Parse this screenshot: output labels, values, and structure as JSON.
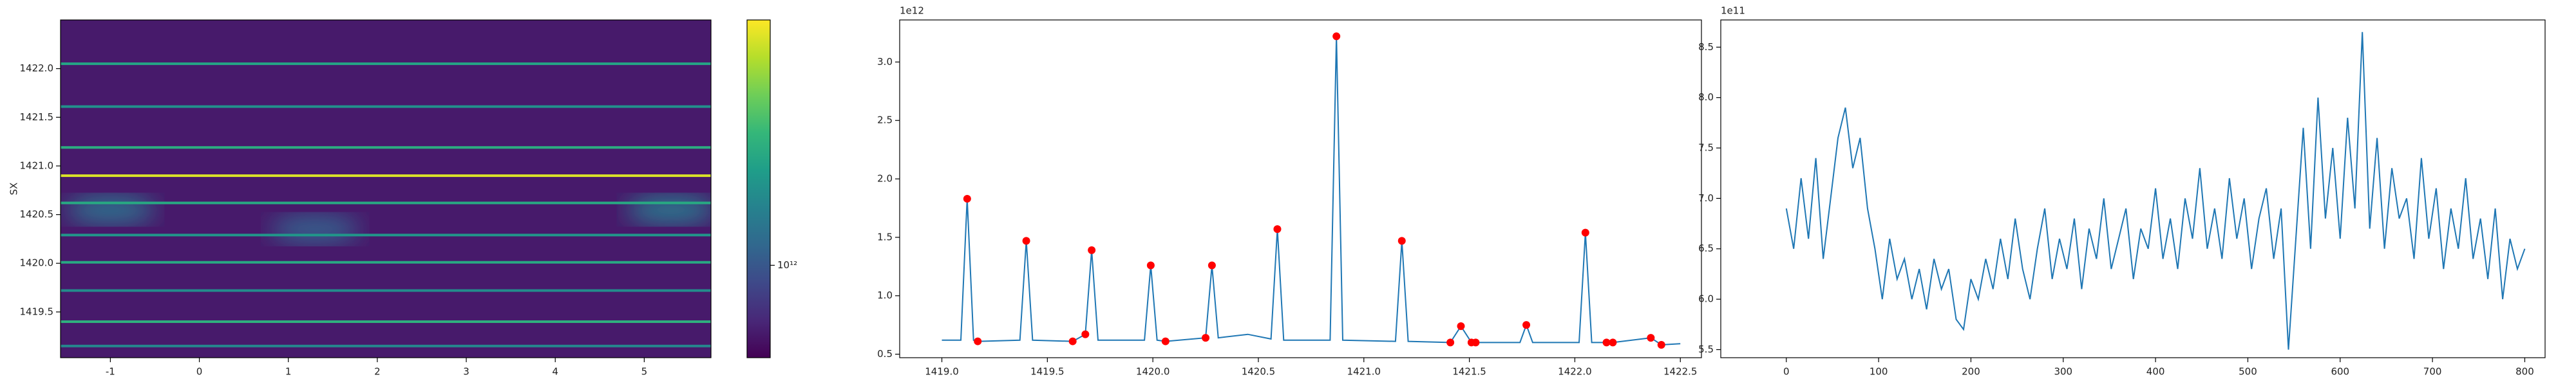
{
  "chart_data": [
    {
      "type": "heatmap",
      "ylabel": "SX",
      "xlim": [
        -1.56,
        5.75
      ],
      "ylim": [
        1419.03,
        1422.5
      ],
      "xticks": [
        -1,
        0,
        1,
        2,
        3,
        4,
        5
      ],
      "yticks": [
        1419.5,
        {
          "value": 1420,
          "label": "1420.0"
        },
        1420.5,
        {
          "value": 1421,
          "label": "1421.0"
        },
        1421.5,
        {
          "value": 1422,
          "label": "1422.0"
        }
      ],
      "background": 600000000000,
      "rows": [
        {
          "y": 1422.05,
          "value": 2200000000000
        },
        {
          "y": 1421.61,
          "value": 1800000000000
        },
        {
          "y": 1421.19,
          "value": 2400000000000
        },
        {
          "y": 1420.9,
          "value": 5500000000000
        },
        {
          "y": 1420.62,
          "value": 2300000000000
        },
        {
          "y": 1420.29,
          "value": 1900000000000
        },
        {
          "y": 1420.01,
          "value": 2300000000000
        },
        {
          "y": 1419.72,
          "value": 1700000000000
        },
        {
          "y": 1419.4,
          "value": 2500000000000
        },
        {
          "y": 1419.15,
          "value": 1600000000000
        }
      ],
      "blobs": [
        {
          "x": -1.0,
          "y": 1420.55,
          "value": 1300000000000
        },
        {
          "x": 1.3,
          "y": 1420.35,
          "value": 1100000000000
        },
        {
          "x": 5.3,
          "y": 1420.55,
          "value": 1400000000000
        }
      ],
      "colorbar": {
        "scale": "log",
        "colormap": "viridis",
        "clim": [
          500000000000,
          6300000000000
        ],
        "ticks": [
          {
            "value": 1000000000000,
            "label": "10¹²"
          }
        ]
      }
    },
    {
      "type": "line",
      "offset_label": "1e12",
      "xlim": [
        1418.8,
        1422.6
      ],
      "ylim": [
        0.47,
        3.36
      ],
      "xticks": [
        {
          "value": 1419,
          "label": "1419.0"
        },
        1419.5,
        {
          "value": 1420,
          "label": "1420.0"
        },
        1420.5,
        {
          "value": 1421,
          "label": "1421.0"
        },
        1421.5,
        {
          "value": 1422,
          "label": "1422.0"
        },
        1422.5
      ],
      "yticks": [
        0.5,
        {
          "value": 1,
          "label": "1.0"
        },
        1.5,
        {
          "value": 2,
          "label": "2.0"
        },
        2.5,
        {
          "value": 3,
          "label": "3.0"
        }
      ],
      "x": [
        1419.0,
        1419.09,
        1419.12,
        1419.15,
        1419.17,
        1419.37,
        1419.4,
        1419.43,
        1419.62,
        1419.68,
        1419.71,
        1419.74,
        1419.96,
        1419.99,
        1420.02,
        1420.06,
        1420.25,
        1420.28,
        1420.31,
        1420.45,
        1420.56,
        1420.59,
        1420.62,
        1420.84,
        1420.87,
        1420.9,
        1421.15,
        1421.18,
        1421.21,
        1421.41,
        1421.46,
        1421.51,
        1421.53,
        1421.74,
        1421.77,
        1421.8,
        1422.02,
        1422.05,
        1422.08,
        1422.15,
        1422.18,
        1422.36,
        1422.41,
        1422.5
      ],
      "series": [
        {
          "color": "#1f77b4",
          "values": [
            0.62,
            0.62,
            1.83,
            0.62,
            0.61,
            0.62,
            1.47,
            0.62,
            0.61,
            0.67,
            1.39,
            0.62,
            0.62,
            1.26,
            0.62,
            0.61,
            0.64,
            1.26,
            0.64,
            0.67,
            0.63,
            1.57,
            0.62,
            0.62,
            3.22,
            0.62,
            0.61,
            1.47,
            0.61,
            0.6,
            0.74,
            0.6,
            0.6,
            0.6,
            0.75,
            0.6,
            0.6,
            1.54,
            0.6,
            0.6,
            0.6,
            0.64,
            0.58,
            0.59
          ]
        }
      ],
      "points": {
        "color": "#ff0000",
        "x": [
          1419.12,
          1419.17,
          1419.4,
          1419.62,
          1419.68,
          1419.71,
          1419.99,
          1420.06,
          1420.25,
          1420.28,
          1420.59,
          1420.87,
          1421.18,
          1421.41,
          1421.46,
          1421.51,
          1421.53,
          1421.77,
          1422.05,
          1422.15,
          1422.18,
          1422.36,
          1422.41
        ],
        "values": [
          1.83,
          0.61,
          1.47,
          0.61,
          0.67,
          1.39,
          1.26,
          0.61,
          0.64,
          1.26,
          1.57,
          3.22,
          1.47,
          0.6,
          0.74,
          0.6,
          0.6,
          0.75,
          1.54,
          0.6,
          0.6,
          0.64,
          0.58
        ]
      }
    },
    {
      "type": "line",
      "offset_label": "1e11",
      "xlim": [
        -71,
        822
      ],
      "ylim": [
        5.42,
        8.77
      ],
      "xticks": [
        0,
        100,
        200,
        300,
        400,
        500,
        600,
        700,
        800
      ],
      "yticks": [
        5.5,
        {
          "value": 6,
          "label": "6.0"
        },
        6.5,
        {
          "value": 7,
          "label": "7.0"
        },
        7.5,
        {
          "value": 8,
          "label": "8.0"
        },
        8.5
      ],
      "x": [
        0,
        8,
        16,
        24,
        32,
        40,
        48,
        56,
        64,
        72,
        80,
        88,
        96,
        104,
        112,
        120,
        128,
        136,
        144,
        152,
        160,
        168,
        176,
        184,
        192,
        200,
        208,
        216,
        224,
        232,
        240,
        248,
        256,
        264,
        272,
        280,
        288,
        296,
        304,
        312,
        320,
        328,
        336,
        344,
        352,
        360,
        368,
        376,
        384,
        392,
        400,
        408,
        416,
        424,
        432,
        440,
        448,
        456,
        464,
        472,
        480,
        488,
        496,
        504,
        512,
        520,
        528,
        536,
        544,
        552,
        560,
        568,
        576,
        584,
        592,
        600,
        608,
        616,
        624,
        632,
        640,
        648,
        656,
        664,
        672,
        680,
        688,
        696,
        704,
        712,
        720,
        728,
        736,
        744,
        752,
        760,
        768,
        776,
        784,
        792,
        800
      ],
      "series": [
        {
          "color": "#1f77b4",
          "values": [
            6.9,
            6.5,
            7.2,
            6.6,
            7.4,
            6.4,
            7.0,
            7.6,
            7.9,
            7.3,
            7.6,
            6.9,
            6.5,
            6.0,
            6.6,
            6.2,
            6.4,
            6.0,
            6.3,
            5.9,
            6.4,
            6.1,
            6.3,
            5.8,
            5.7,
            6.2,
            6.0,
            6.4,
            6.1,
            6.6,
            6.2,
            6.8,
            6.3,
            6.0,
            6.5,
            6.9,
            6.2,
            6.6,
            6.3,
            6.8,
            6.1,
            6.7,
            6.4,
            7.0,
            6.3,
            6.6,
            6.9,
            6.2,
            6.7,
            6.5,
            7.1,
            6.4,
            6.8,
            6.3,
            7.0,
            6.6,
            7.3,
            6.5,
            6.9,
            6.4,
            7.2,
            6.6,
            7.0,
            6.3,
            6.8,
            7.1,
            6.4,
            6.9,
            5.5,
            6.6,
            7.7,
            6.5,
            8.0,
            6.8,
            7.5,
            6.6,
            7.8,
            6.9,
            8.65,
            6.7,
            7.6,
            6.5,
            7.3,
            6.8,
            7.0,
            6.4,
            7.4,
            6.6,
            7.1,
            6.3,
            6.9,
            6.5,
            7.2,
            6.4,
            6.8,
            6.2,
            6.9,
            6.0,
            6.6,
            6.3,
            6.5
          ]
        }
      ]
    }
  ]
}
